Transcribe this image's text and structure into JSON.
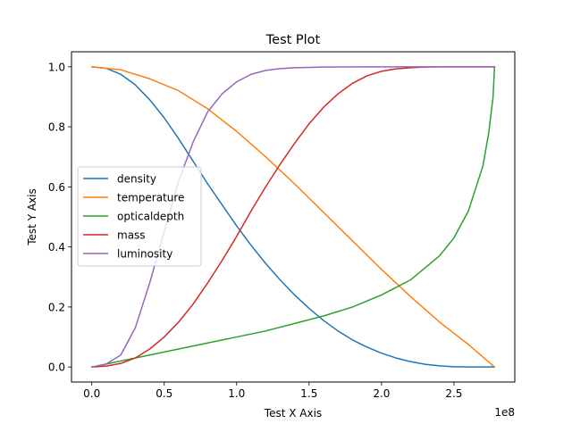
{
  "chart_data": {
    "type": "line",
    "title": "Test Plot",
    "xlabel": "Test X Axis",
    "ylabel": "Test Y Axis",
    "x_offset_label": "1e8",
    "xlim": [
      -0.14,
      2.92
    ],
    "ylim": [
      -0.05,
      1.05
    ],
    "x_ticks": [
      0.0,
      0.5,
      1.0,
      1.5,
      2.0,
      2.5
    ],
    "x_tick_labels": [
      "0.0",
      "0.5",
      "1.0",
      "1.5",
      "2.0",
      "2.5"
    ],
    "y_ticks": [
      0.0,
      0.2,
      0.4,
      0.6,
      0.8,
      1.0
    ],
    "y_tick_labels": [
      "0.0",
      "0.2",
      "0.4",
      "0.6",
      "0.8",
      "1.0"
    ],
    "grid": false,
    "legend_position": "center-left",
    "series": [
      {
        "name": "density",
        "color": "#1f77b4",
        "points": [
          [
            0.0,
            1.0
          ],
          [
            0.1,
            0.995
          ],
          [
            0.2,
            0.975
          ],
          [
            0.3,
            0.94
          ],
          [
            0.4,
            0.89
          ],
          [
            0.5,
            0.83
          ],
          [
            0.6,
            0.76
          ],
          [
            0.7,
            0.685
          ],
          [
            0.8,
            0.61
          ],
          [
            0.9,
            0.54
          ],
          [
            1.0,
            0.47
          ],
          [
            1.1,
            0.405
          ],
          [
            1.2,
            0.345
          ],
          [
            1.3,
            0.29
          ],
          [
            1.4,
            0.24
          ],
          [
            1.5,
            0.195
          ],
          [
            1.6,
            0.155
          ],
          [
            1.7,
            0.12
          ],
          [
            1.8,
            0.09
          ],
          [
            1.9,
            0.066
          ],
          [
            2.0,
            0.046
          ],
          [
            2.1,
            0.03
          ],
          [
            2.2,
            0.018
          ],
          [
            2.3,
            0.009
          ],
          [
            2.4,
            0.004
          ],
          [
            2.5,
            0.001
          ],
          [
            2.6,
            0.0003
          ],
          [
            2.7,
            0.0001
          ],
          [
            2.78,
            0.0
          ]
        ]
      },
      {
        "name": "temperature",
        "color": "#ff7f0e",
        "points": [
          [
            0.0,
            1.0
          ],
          [
            0.2,
            0.99
          ],
          [
            0.4,
            0.96
          ],
          [
            0.6,
            0.92
          ],
          [
            0.8,
            0.86
          ],
          [
            1.0,
            0.785
          ],
          [
            1.2,
            0.7
          ],
          [
            1.4,
            0.61
          ],
          [
            1.6,
            0.515
          ],
          [
            1.8,
            0.42
          ],
          [
            2.0,
            0.325
          ],
          [
            2.2,
            0.235
          ],
          [
            2.4,
            0.15
          ],
          [
            2.6,
            0.075
          ],
          [
            2.78,
            0.0
          ]
        ]
      },
      {
        "name": "opticaldepth",
        "color": "#2ca02c",
        "points": [
          [
            0.0,
            0.0
          ],
          [
            0.2,
            0.02
          ],
          [
            0.4,
            0.04
          ],
          [
            0.6,
            0.06
          ],
          [
            0.8,
            0.08
          ],
          [
            1.0,
            0.1
          ],
          [
            1.2,
            0.12
          ],
          [
            1.4,
            0.145
          ],
          [
            1.6,
            0.17
          ],
          [
            1.8,
            0.2
          ],
          [
            2.0,
            0.24
          ],
          [
            2.2,
            0.29
          ],
          [
            2.4,
            0.37
          ],
          [
            2.5,
            0.43
          ],
          [
            2.6,
            0.52
          ],
          [
            2.7,
            0.67
          ],
          [
            2.74,
            0.78
          ],
          [
            2.77,
            0.9
          ],
          [
            2.78,
            1.0
          ]
        ]
      },
      {
        "name": "mass",
        "color": "#d62728",
        "points": [
          [
            0.0,
            0.0
          ],
          [
            0.1,
            0.003
          ],
          [
            0.2,
            0.012
          ],
          [
            0.3,
            0.03
          ],
          [
            0.4,
            0.06
          ],
          [
            0.5,
            0.1
          ],
          [
            0.6,
            0.15
          ],
          [
            0.7,
            0.21
          ],
          [
            0.8,
            0.28
          ],
          [
            0.9,
            0.355
          ],
          [
            1.0,
            0.435
          ],
          [
            1.1,
            0.52
          ],
          [
            1.2,
            0.6
          ],
          [
            1.3,
            0.675
          ],
          [
            1.4,
            0.745
          ],
          [
            1.5,
            0.81
          ],
          [
            1.6,
            0.865
          ],
          [
            1.7,
            0.91
          ],
          [
            1.8,
            0.945
          ],
          [
            1.9,
            0.97
          ],
          [
            2.0,
            0.985
          ],
          [
            2.1,
            0.993
          ],
          [
            2.2,
            0.997
          ],
          [
            2.3,
            0.999
          ],
          [
            2.4,
            1.0
          ],
          [
            2.78,
            1.0
          ]
        ]
      },
      {
        "name": "luminosity",
        "color": "#9467bd",
        "points": [
          [
            0.0,
            0.0
          ],
          [
            0.1,
            0.01
          ],
          [
            0.2,
            0.04
          ],
          [
            0.3,
            0.13
          ],
          [
            0.4,
            0.28
          ],
          [
            0.5,
            0.45
          ],
          [
            0.6,
            0.62
          ],
          [
            0.7,
            0.75
          ],
          [
            0.8,
            0.85
          ],
          [
            0.9,
            0.91
          ],
          [
            1.0,
            0.95
          ],
          [
            1.1,
            0.975
          ],
          [
            1.2,
            0.988
          ],
          [
            1.3,
            0.994
          ],
          [
            1.4,
            0.997
          ],
          [
            1.6,
            0.999
          ],
          [
            2.0,
            1.0
          ],
          [
            2.78,
            1.0
          ]
        ]
      }
    ]
  }
}
